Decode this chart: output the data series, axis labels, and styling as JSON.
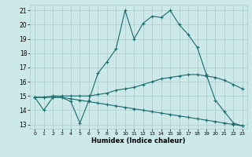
{
  "xlabel": "Humidex (Indice chaleur)",
  "background_color": "#cce8e8",
  "grid_color": "#aacccc",
  "line_color": "#1a6b6b",
  "xlim": [
    -0.5,
    23.5
  ],
  "ylim": [
    12.7,
    21.4
  ],
  "x_ticks": [
    0,
    1,
    2,
    3,
    4,
    5,
    6,
    7,
    8,
    9,
    10,
    11,
    12,
    13,
    14,
    15,
    16,
    17,
    18,
    19,
    20,
    21,
    22,
    23
  ],
  "y_ticks": [
    13,
    14,
    15,
    16,
    17,
    18,
    19,
    20,
    21
  ],
  "line1_y": [
    14.9,
    14.0,
    14.9,
    14.9,
    14.6,
    13.1,
    14.7,
    16.6,
    17.4,
    18.3,
    21.0,
    19.0,
    20.1,
    20.6,
    20.5,
    21.0,
    20.0,
    19.3,
    18.4,
    16.5,
    14.7,
    13.9,
    13.1,
    12.9
  ],
  "line2_y": [
    14.9,
    14.9,
    15.0,
    15.0,
    15.0,
    15.0,
    15.0,
    15.1,
    15.2,
    15.4,
    15.5,
    15.6,
    15.8,
    16.0,
    16.2,
    16.3,
    16.4,
    16.5,
    16.5,
    16.4,
    16.3,
    16.1,
    15.8,
    15.5
  ],
  "line3_y": [
    14.9,
    14.9,
    14.9,
    14.9,
    14.8,
    14.7,
    14.6,
    14.5,
    14.4,
    14.3,
    14.2,
    14.1,
    14.0,
    13.9,
    13.8,
    13.7,
    13.6,
    13.5,
    13.4,
    13.3,
    13.2,
    13.1,
    13.0,
    12.9
  ]
}
